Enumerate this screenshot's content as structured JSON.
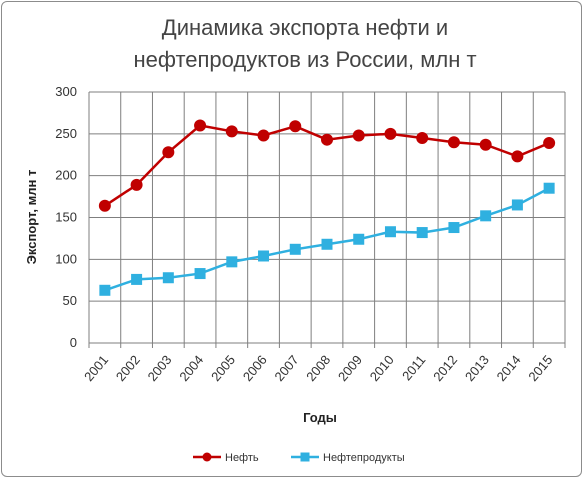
{
  "chart_data": {
    "type": "line",
    "title_line1": "Динамика экспорта нефти и",
    "title_line2": "нефтепродуктов из России, млн т",
    "xlabel": "Годы",
    "ylabel": "Экспорт, млн т",
    "ylim": [
      0,
      300
    ],
    "yticks": [
      "0",
      "50",
      "100",
      "150",
      "200",
      "250",
      "300"
    ],
    "categories": [
      "2001",
      "2002",
      "2003",
      "2004",
      "2005",
      "2006",
      "2007",
      "2008",
      "2009",
      "2010",
      "2011",
      "2012",
      "2013",
      "2014",
      "2015"
    ],
    "grid": true,
    "legend_position": "bottom",
    "series": [
      {
        "name": "Нефть",
        "color": "#c00000",
        "marker": "circle",
        "values": [
          164,
          189,
          228,
          260,
          253,
          248,
          259,
          243,
          248,
          250,
          245,
          240,
          237,
          223,
          239
        ]
      },
      {
        "name": "Нефтепродукты",
        "color": "#2fb0e0",
        "marker": "square",
        "values": [
          63,
          76,
          78,
          83,
          97,
          104,
          112,
          118,
          124,
          133,
          132,
          138,
          152,
          165,
          185
        ]
      }
    ]
  }
}
